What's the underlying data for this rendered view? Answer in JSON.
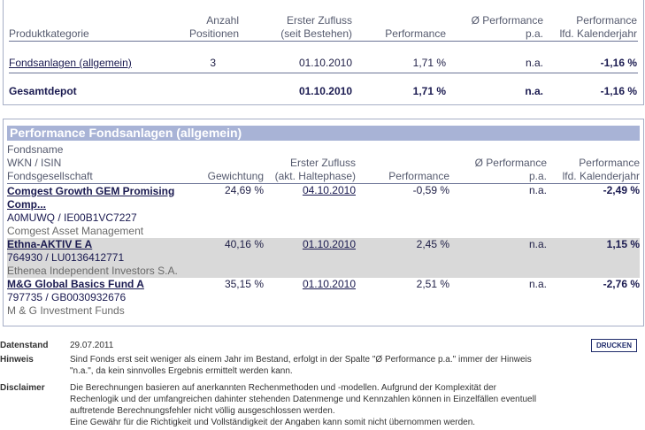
{
  "summary": {
    "headers": {
      "category": "Produktkategorie",
      "positions": [
        "Anzahl",
        "Positionen"
      ],
      "first_inflow": [
        "Erster Zufluss",
        "(seit Bestehen)"
      ],
      "performance": "Performance",
      "perf_pa": [
        "Ø Performance",
        "p.a."
      ],
      "perf_ytd": [
        "Performance",
        "lfd. Kalenderjahr"
      ]
    },
    "rows": [
      {
        "category": "Fondsanlagen (allgemein)",
        "positions": "3",
        "first_inflow": "01.10.2010",
        "performance": "1,71 %",
        "perf_pa": "n.a.",
        "perf_ytd": "-1,16 %"
      }
    ],
    "total": {
      "label": "Gesamtdepot",
      "first_inflow": "01.10.2010",
      "performance": "1,71 %",
      "perf_pa": "n.a.",
      "perf_ytd": "-1,16 %"
    }
  },
  "funds": {
    "title": "Performance Fondsanlagen (allgemein)",
    "headers": {
      "name": [
        "Fondsname",
        "WKN / ISIN",
        "Fondsgesellschaft"
      ],
      "weight": "Gewichtung",
      "first_inflow": [
        "Erster Zufluss",
        "(akt. Haltephase)"
      ],
      "performance": "Performance",
      "perf_pa": [
        "Ø Performance",
        "p.a."
      ],
      "perf_ytd": [
        "Performance",
        "lfd. Kalenderjahr"
      ]
    },
    "rows": [
      {
        "name_line1": "Comgest Growth GEM Promising",
        "name_line2": "Comp...",
        "ids": "A0MUWQ /  IE00B1VC7227",
        "company": "Comgest Asset Management",
        "weight": "24,69 %",
        "first_inflow": "04.10.2010",
        "performance": "-0,59 %",
        "perf_pa": "n.a.",
        "perf_ytd": "-2,49 %"
      },
      {
        "name_line1": "Ethna-AKTIV E A",
        "name_line2": "",
        "ids": "764930 /  LU0136412771",
        "company": "Ethenea Independent Investors S.A.",
        "weight": "40,16 %",
        "first_inflow": "01.10.2010",
        "performance": "2,45 %",
        "perf_pa": "n.a.",
        "perf_ytd": "1,15 %"
      },
      {
        "name_line1": "M&G Global Basics Fund A",
        "name_line2": "",
        "ids": "797735 /  GB0030932676",
        "company": "M & G Investment Funds",
        "weight": "35,15 %",
        "first_inflow": "01.10.2010",
        "performance": "2,51 %",
        "perf_pa": "n.a.",
        "perf_ytd": "-2,76 %"
      }
    ]
  },
  "footer": {
    "datenstand_label": "Datenstand",
    "datenstand_value": "29.07.2011",
    "hinweis_label": "Hinweis",
    "hinweis_lines": [
      "Sind Fonds erst seit weniger als einem Jahr im Bestand, erfolgt in der Spalte \"Ø Performance p.a.\" immer der Hinweis",
      "\"n.a.\", da kein sinnvolles Ergebnis ermittelt werden kann."
    ],
    "disclaimer_label": "Disclaimer",
    "disclaimer_lines": [
      "Die Berechnungen basieren auf anerkannten Rechenmethoden und -modellen. Aufgrund der Komplexität der",
      "Rechenlogik und der umfangreichen dahinter stehenden Datenmenge und Kennzahlen können in Einzelfällen eventuell",
      "auftretende Berechnungsfehler nicht völlig ausgeschlossen werden.",
      "Eine Gewähr für die Richtigkeit und Vollständigkeit der Angaben kann somit nicht übernommen werden."
    ],
    "print_label": "DRUCKEN"
  }
}
